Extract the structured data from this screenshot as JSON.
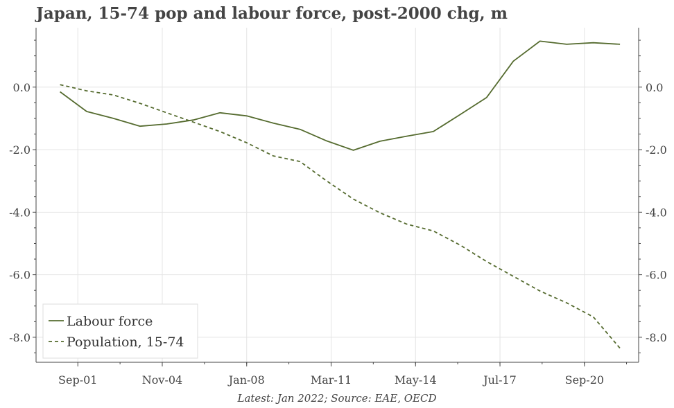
{
  "chart_data": {
    "type": "line",
    "title": "Japan, 15-74 pop and labour force, post-2000 chg, m",
    "source": "Latest: Jan 2022; Source: EAE, OECD",
    "x_tick_labels": [
      "Sep-01",
      "Nov-04",
      "Jan-08",
      "Mar-11",
      "May-14",
      "Jul-17",
      "Sep-20"
    ],
    "x_tick_years": [
      2001.667,
      2004.833,
      2008.0,
      2011.167,
      2014.333,
      2017.5,
      2020.667
    ],
    "xlim": [
      2000.1,
      2022.7
    ],
    "y_tick_labels": [
      "0.0",
      "-2.0",
      "-4.0",
      "-6.0",
      "-8.0"
    ],
    "y_tick_values": [
      0,
      -2,
      -4,
      -6,
      -8
    ],
    "ylim": [
      -8.8,
      1.9
    ],
    "grid": true,
    "legend_position": "bottom-left",
    "series": [
      {
        "name": "Labour force",
        "style": "solid",
        "color": "#556b2f",
        "x": [
          2001.0,
          2002.0,
          2003.0,
          2004.0,
          2005.0,
          2006.0,
          2007.0,
          2008.0,
          2009.0,
          2010.0,
          2011.0,
          2012.0,
          2013.0,
          2014.0,
          2015.0,
          2016.0,
          2017.0,
          2018.0,
          2019.0,
          2020.0,
          2021.0,
          2022.0
        ],
        "y": [
          -0.15,
          -0.78,
          -1.0,
          -1.25,
          -1.18,
          -1.05,
          -0.82,
          -0.92,
          -1.15,
          -1.35,
          -1.72,
          -2.02,
          -1.73,
          -1.57,
          -1.42,
          -0.88,
          -0.33,
          0.83,
          1.47,
          1.37,
          1.42,
          1.37
        ]
      },
      {
        "name": "Population, 15-74",
        "style": "dashed",
        "color": "#556b2f",
        "x": [
          2001.0,
          2002.0,
          2003.0,
          2004.0,
          2005.0,
          2006.0,
          2007.0,
          2008.0,
          2009.0,
          2010.0,
          2011.0,
          2012.0,
          2013.0,
          2014.0,
          2015.0,
          2016.0,
          2017.0,
          2018.0,
          2019.0,
          2020.0,
          2021.0,
          2022.0
        ],
        "y": [
          0.08,
          -0.12,
          -0.25,
          -0.52,
          -0.82,
          -1.12,
          -1.42,
          -1.78,
          -2.2,
          -2.38,
          -3.0,
          -3.58,
          -4.02,
          -4.38,
          -4.6,
          -5.05,
          -5.58,
          -6.05,
          -6.52,
          -6.9,
          -7.35,
          -8.35
        ]
      }
    ]
  }
}
